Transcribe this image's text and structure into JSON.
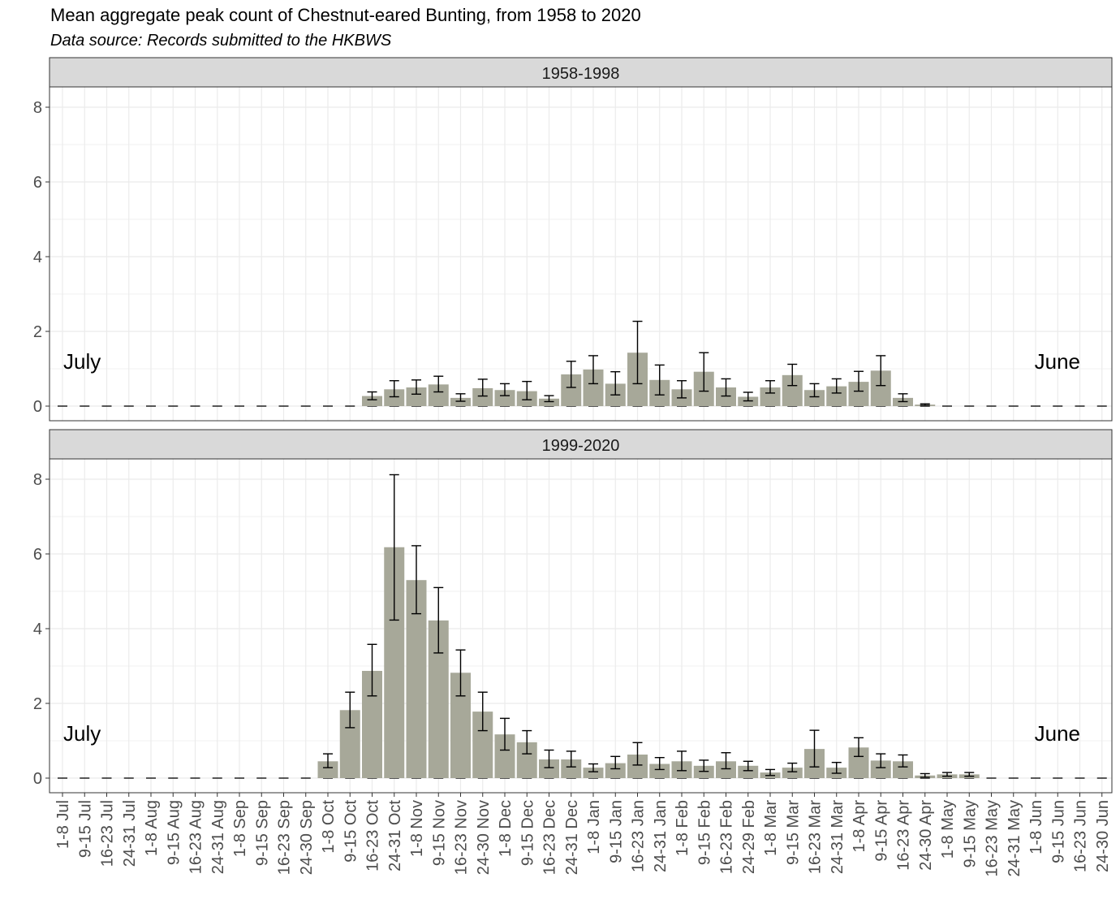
{
  "chart_data": {
    "type": "bar",
    "title": "Mean aggregate peak count of Chestnut-eared Bunting, from 1958 to 2020",
    "subtitle": "Data source: Records submitted to the HKBWS",
    "xlabel": "",
    "ylabel": "",
    "ylim": [
      0,
      8.5
    ],
    "yticks": [
      0,
      2,
      4,
      6,
      8
    ],
    "grid": true,
    "categories": [
      "1-8 Jul",
      "9-15 Jul",
      "16-23 Jul",
      "24-31 Jul",
      "1-8 Aug",
      "9-15 Aug",
      "16-23 Aug",
      "24-31 Aug",
      "1-8 Sep",
      "9-15 Sep",
      "16-23 Sep",
      "24-30 Sep",
      "1-8 Oct",
      "9-15 Oct",
      "16-23 Oct",
      "24-31 Oct",
      "1-8 Nov",
      "9-15 Nov",
      "16-23 Nov",
      "24-30 Nov",
      "1-8 Dec",
      "9-15 Dec",
      "16-23 Dec",
      "24-31 Dec",
      "1-8 Jan",
      "9-15 Jan",
      "16-23 Jan",
      "24-31 Jan",
      "1-8 Feb",
      "9-15 Feb",
      "16-23 Feb",
      "24-29 Feb",
      "1-8 Mar",
      "9-15 Mar",
      "16-23 Mar",
      "24-31 Mar",
      "1-8 Apr",
      "9-15 Apr",
      "16-23 Apr",
      "24-30 Apr",
      "1-8 May",
      "9-15 May",
      "16-23 May",
      "24-31 May",
      "1-8 Jun",
      "9-15 Jun",
      "16-23 Jun",
      "24-30 Jun"
    ],
    "bar_color": "#a7a899",
    "strip_color": "#d9d9d9",
    "panels": [
      {
        "label": "1958-1998",
        "left_note": "July",
        "right_note": "June",
        "values": [
          0,
          0,
          0,
          0,
          0,
          0,
          0,
          0,
          0,
          0,
          0,
          0,
          0,
          0,
          0.27,
          0.45,
          0.5,
          0.58,
          0.22,
          0.48,
          0.43,
          0.4,
          0.2,
          0.85,
          0.98,
          0.6,
          1.43,
          0.7,
          0.45,
          0.92,
          0.5,
          0.25,
          0.5,
          0.83,
          0.43,
          0.53,
          0.65,
          0.95,
          0.22,
          0.04,
          0,
          0,
          0,
          0,
          0,
          0,
          0,
          0
        ],
        "err_low": [
          0,
          0,
          0,
          0,
          0,
          0,
          0,
          0,
          0,
          0,
          0,
          0,
          0,
          0,
          0.17,
          0.25,
          0.32,
          0.38,
          0.13,
          0.27,
          0.28,
          0.17,
          0.12,
          0.5,
          0.6,
          0.3,
          0.6,
          0.3,
          0.22,
          0.4,
          0.27,
          0.14,
          0.35,
          0.55,
          0.25,
          0.35,
          0.4,
          0.55,
          0.12,
          0.02,
          0,
          0,
          0,
          0,
          0,
          0,
          0,
          0
        ],
        "err_high": [
          0,
          0,
          0,
          0,
          0,
          0,
          0,
          0,
          0,
          0,
          0,
          0,
          0,
          0,
          0.38,
          0.68,
          0.7,
          0.8,
          0.33,
          0.72,
          0.6,
          0.66,
          0.28,
          1.2,
          1.35,
          0.92,
          2.27,
          1.1,
          0.68,
          1.43,
          0.73,
          0.37,
          0.68,
          1.12,
          0.6,
          0.73,
          0.93,
          1.35,
          0.33,
          0.06,
          0,
          0,
          0,
          0,
          0,
          0,
          0,
          0
        ]
      },
      {
        "label": "1999-2020",
        "left_note": "July",
        "right_note": "June",
        "values": [
          0,
          0,
          0,
          0,
          0,
          0,
          0,
          0,
          0,
          0,
          0,
          0,
          0.45,
          1.82,
          2.87,
          6.18,
          5.3,
          4.22,
          2.82,
          1.78,
          1.17,
          0.96,
          0.5,
          0.5,
          0.28,
          0.4,
          0.63,
          0.38,
          0.45,
          0.33,
          0.45,
          0.33,
          0.15,
          0.28,
          0.78,
          0.28,
          0.82,
          0.47,
          0.45,
          0.07,
          0.1,
          0.1,
          0,
          0,
          0,
          0,
          0,
          0
        ],
        "err_low": [
          0,
          0,
          0,
          0,
          0,
          0,
          0,
          0,
          0,
          0,
          0,
          0,
          0.28,
          1.35,
          2.2,
          4.23,
          4.4,
          3.35,
          2.2,
          1.27,
          0.75,
          0.65,
          0.28,
          0.3,
          0.17,
          0.25,
          0.35,
          0.23,
          0.2,
          0.18,
          0.25,
          0.2,
          0.07,
          0.17,
          0.3,
          0.13,
          0.58,
          0.28,
          0.3,
          0.02,
          0.05,
          0.05,
          0,
          0,
          0,
          0,
          0,
          0
        ],
        "err_high": [
          0,
          0,
          0,
          0,
          0,
          0,
          0,
          0,
          0,
          0,
          0,
          0,
          0.65,
          2.3,
          3.58,
          8.12,
          6.22,
          5.1,
          3.43,
          2.3,
          1.6,
          1.27,
          0.75,
          0.72,
          0.38,
          0.58,
          0.95,
          0.55,
          0.72,
          0.48,
          0.68,
          0.45,
          0.23,
          0.4,
          1.28,
          0.42,
          1.08,
          0.65,
          0.62,
          0.12,
          0.15,
          0.15,
          0,
          0,
          0,
          0,
          0,
          0
        ]
      }
    ]
  }
}
